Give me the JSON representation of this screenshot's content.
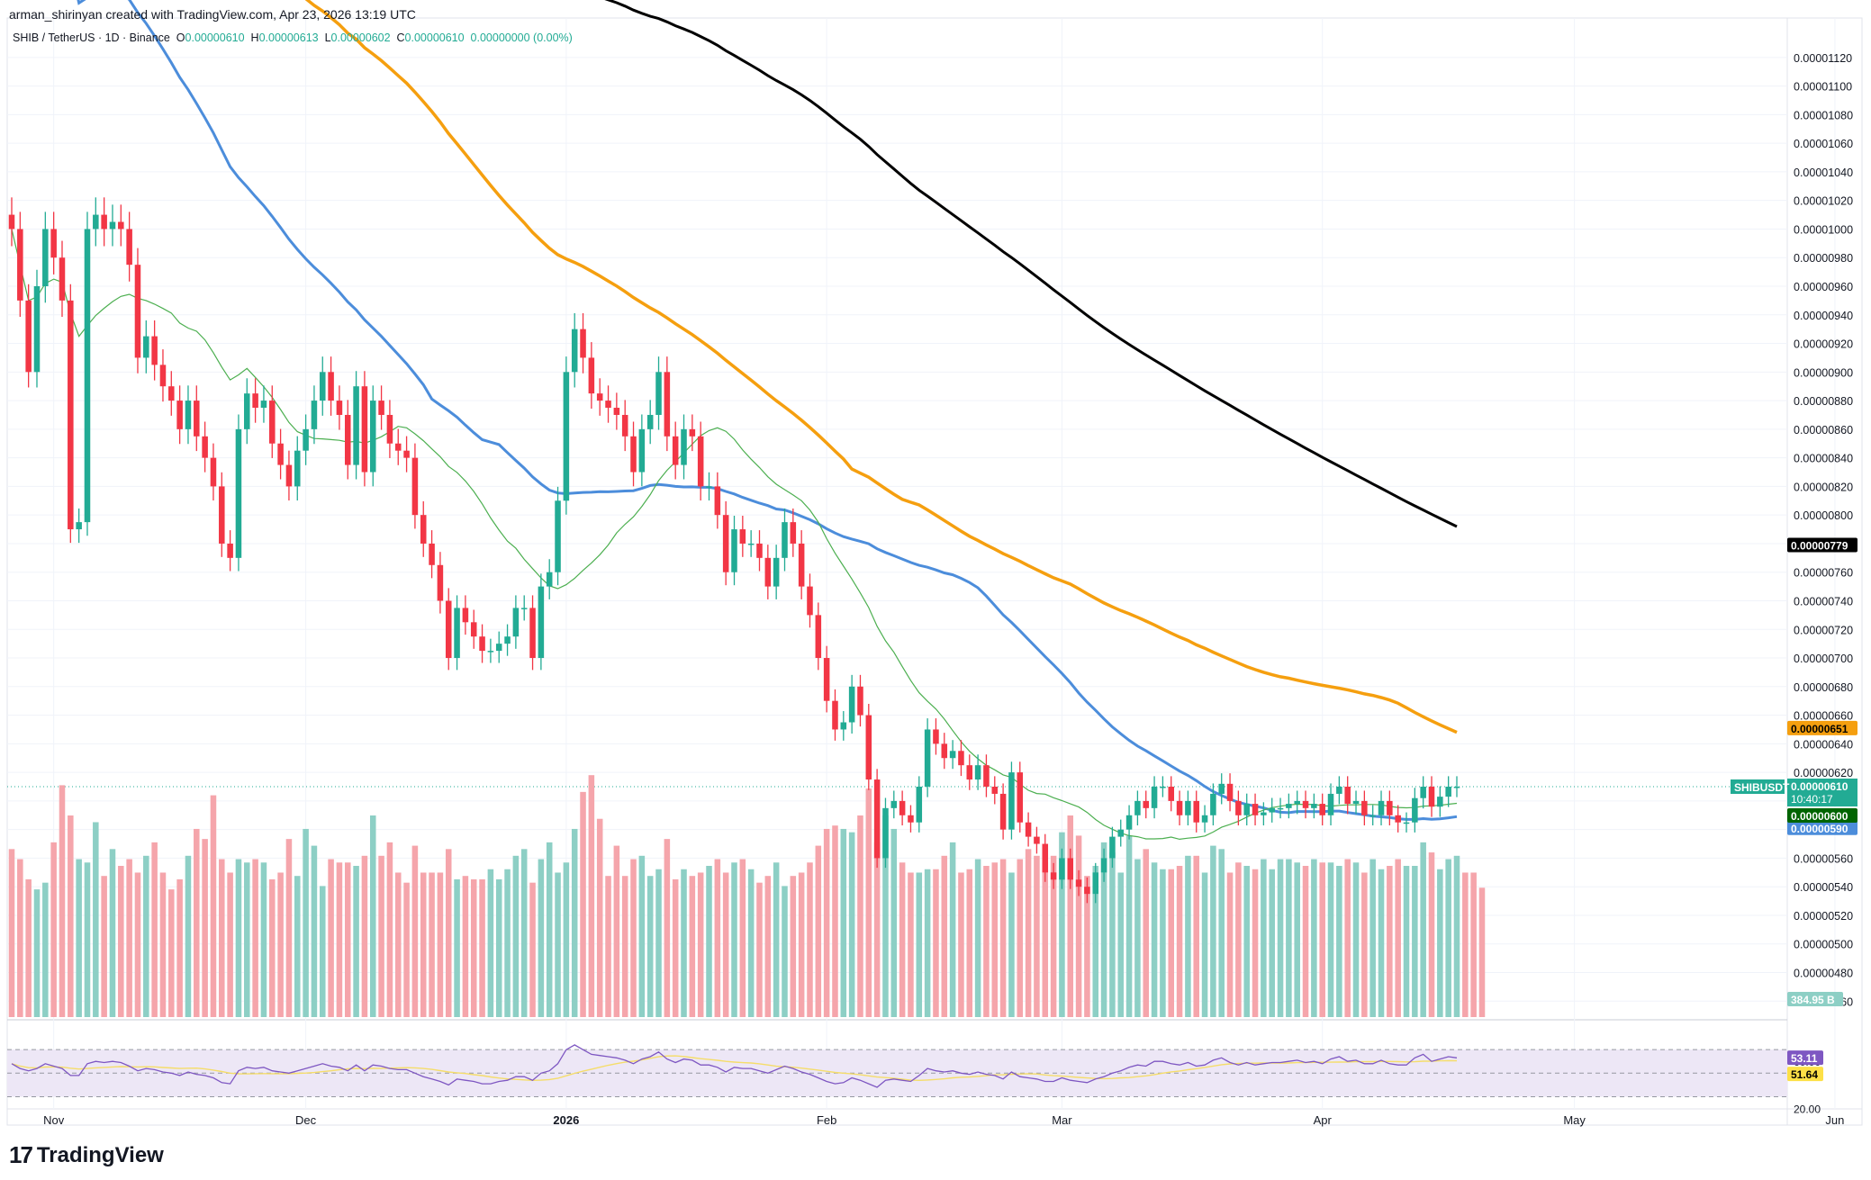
{
  "header": {
    "credit": "arman_shirinyan created with TradingView.com, Apr 23, 2026 13:19 UTC",
    "symbol": "SHIB / TetherUS · 1D · Binance",
    "o_label": "O",
    "o_value": "0.00000610",
    "h_label": "H",
    "h_value": "0.00000613",
    "l_label": "L",
    "l_value": "0.00000602",
    "c_label": "C",
    "c_value": "0.00000610",
    "change": "0.00000000 (0.00%)"
  },
  "brand": {
    "name": "TradingView",
    "logo_icon": "tradingview-logo-icon"
  },
  "colors": {
    "up": "#22ab94",
    "down": "#f23645",
    "vol_up": "#8dcfc5",
    "vol_down": "#f5a5ab",
    "ma_fast": "#4caf50",
    "ma_mid": "#4c8ddb",
    "ma_slow": "#f59f0f",
    "ma_long": "#000000",
    "rsi": "#7e57c2",
    "rsi_ma": "#f5dd6a",
    "rsi_band": "#ede7f6"
  },
  "chart_data": {
    "type": "candlestick",
    "symbol": "SHIBUSDT",
    "timeframe": "1D",
    "start_date": "2025-10-27",
    "x_ticks": [
      "Nov",
      "Dec",
      "2026",
      "Feb",
      "Mar",
      "Apr",
      "May",
      "Jun"
    ],
    "y_ticks": [
      "0.00001120",
      "0.00001100",
      "0.00001080",
      "0.00001060",
      "0.00001040",
      "0.00001020",
      "0.00001000",
      "0.00000980",
      "0.00000960",
      "0.00000940",
      "0.00000920",
      "0.00000900",
      "0.00000880",
      "0.00000860",
      "0.00000840",
      "0.00000820",
      "0.00000800",
      "0.00000780",
      "0.00000760",
      "0.00000740",
      "0.00000720",
      "0.00000700",
      "0.00000680",
      "0.00000660",
      "0.00000640",
      "0.00000620",
      "0.00000600",
      "0.00000580",
      "0.00000560",
      "0.00000540",
      "0.00000520",
      "0.00000500",
      "0.00000480",
      "0.00000460"
    ],
    "ylim": [
      4.52e-06,
      1.135e-05
    ],
    "price_closes_e8": [
      1000,
      950,
      900,
      960,
      1000,
      980,
      950,
      790,
      795,
      1000,
      1010,
      1000,
      1005,
      1000,
      975,
      910,
      925,
      905,
      890,
      880,
      860,
      880,
      855,
      840,
      820,
      780,
      770,
      860,
      885,
      875,
      880,
      850,
      835,
      820,
      845,
      860,
      880,
      900,
      880,
      870,
      835,
      890,
      830,
      880,
      870,
      850,
      845,
      840,
      800,
      780,
      765,
      740,
      700,
      735,
      725,
      715,
      705,
      705,
      710,
      715,
      735,
      735,
      700,
      750,
      760,
      810,
      900,
      930,
      910,
      885,
      880,
      875,
      870,
      855,
      830,
      860,
      870,
      900,
      855,
      835,
      860,
      855,
      820,
      820,
      800,
      760,
      790,
      780,
      780,
      770,
      750,
      770,
      795,
      780,
      750,
      730,
      700,
      670,
      650,
      655,
      680,
      660,
      615,
      560,
      595,
      600,
      590,
      585,
      610,
      650,
      640,
      630,
      635,
      625,
      615,
      625,
      610,
      605,
      580,
      620,
      585,
      575,
      570,
      550,
      545,
      560,
      545,
      540,
      535,
      550,
      560,
      575,
      580,
      590,
      600,
      595,
      610,
      610,
      600,
      590,
      600,
      585,
      590,
      605,
      612,
      600,
      590,
      598,
      590,
      592,
      595,
      595,
      598,
      600,
      595,
      598,
      590,
      605,
      610,
      598,
      600,
      590,
      590,
      600,
      590,
      585,
      585,
      602,
      610,
      596,
      603,
      610,
      610
    ],
    "volume_billions": [
      500,
      470,
      410,
      380,
      400,
      520,
      690,
      600,
      470,
      460,
      580,
      420,
      500,
      450,
      470,
      430,
      480,
      520,
      430,
      380,
      410,
      480,
      560,
      530,
      660,
      470,
      430,
      470,
      460,
      470,
      460,
      410,
      430,
      530,
      420,
      560,
      510,
      390,
      470,
      460,
      460,
      450,
      480,
      600,
      480,
      520,
      430,
      400,
      510,
      430,
      430,
      430,
      500,
      410,
      420,
      410,
      410,
      440,
      410,
      440,
      480,
      500,
      400,
      470,
      520,
      430,
      460,
      560,
      670,
      720,
      590,
      420,
      510,
      420,
      470,
      480,
      420,
      440,
      530,
      410,
      440,
      420,
      430,
      450,
      470,
      430,
      460,
      470,
      440,
      400,
      420,
      460,
      390,
      420,
      430,
      460,
      510,
      560,
      570,
      560,
      550,
      600,
      680,
      520,
      600,
      560,
      460,
      430,
      430,
      440,
      440,
      480,
      520,
      430,
      440,
      470,
      450,
      460,
      470,
      430,
      470,
      500,
      480,
      460,
      480,
      550,
      600,
      540,
      420,
      450,
      520,
      490,
      430,
      540,
      470,
      500,
      460,
      440,
      440,
      450,
      480,
      480,
      430,
      510,
      500,
      430,
      460,
      450,
      440,
      470,
      440,
      470,
      470,
      460,
      450,
      470,
      460,
      460,
      450,
      470,
      460,
      430,
      470,
      440,
      450,
      470,
      450,
      450,
      520,
      490,
      440,
      470,
      480,
      430,
      430,
      384.95
    ],
    "price_label": "SHIBUSDT",
    "last_price": "0.00000610",
    "countdown": "10:40:17",
    "series": [
      {
        "name": "",
        "last_label": "0.00000779"
      },
      {
        "name": "",
        "last_label": "0.00000651"
      },
      {
        "name": "",
        "last_label": "0.00000600"
      },
      {
        "name": "",
        "last_label": "0.00000590"
      }
    ],
    "volume_label": "384.95 B",
    "rsi": {
      "upper": "60.00",
      "lower": "20.00",
      "value_label": "53.11",
      "ma_label": "51.64",
      "values": [
        48,
        44,
        42,
        44,
        48,
        46,
        44,
        38,
        38,
        48,
        50,
        49,
        50,
        49,
        46,
        42,
        44,
        43,
        41,
        40,
        38,
        41,
        39,
        38,
        36,
        32,
        31,
        42,
        45,
        44,
        45,
        42,
        41,
        40,
        42,
        44,
        46,
        48,
        46,
        45,
        42,
        47,
        42,
        47,
        46,
        44,
        43,
        43,
        40,
        37,
        35,
        33,
        30,
        35,
        34,
        33,
        31,
        31,
        33,
        34,
        37,
        37,
        34,
        40,
        42,
        48,
        60,
        64,
        60,
        56,
        55,
        54,
        53,
        51,
        48,
        52,
        54,
        58,
        52,
        49,
        52,
        51,
        47,
        47,
        45,
        41,
        45,
        44,
        44,
        42,
        40,
        43,
        46,
        44,
        41,
        39,
        36,
        33,
        31,
        32,
        36,
        34,
        31,
        28,
        34,
        35,
        34,
        33,
        38,
        44,
        42,
        41,
        42,
        40,
        39,
        41,
        39,
        38,
        35,
        41,
        37,
        36,
        35,
        33,
        33,
        36,
        34,
        33,
        32,
        35,
        37,
        40,
        42,
        45,
        47,
        46,
        50,
        50,
        48,
        47,
        49,
        46,
        47,
        51,
        53,
        49,
        47,
        49,
        47,
        48,
        49,
        49,
        50,
        51,
        49,
        50,
        48,
        52,
        54,
        50,
        51,
        48,
        48,
        51,
        48,
        47,
        47,
        53,
        56,
        50,
        52,
        54,
        53
      ]
    }
  }
}
